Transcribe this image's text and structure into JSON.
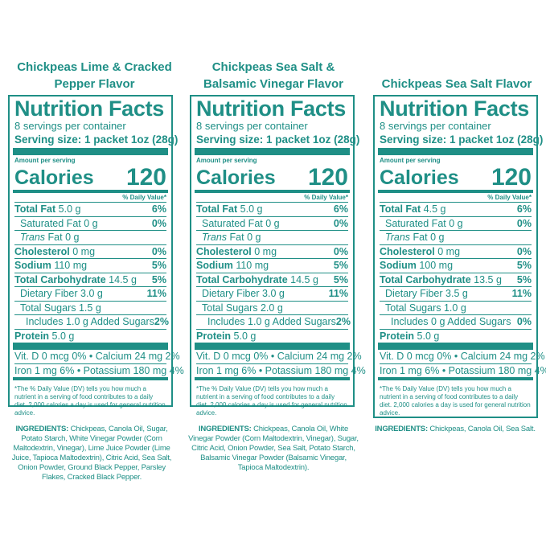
{
  "columns": [
    {
      "flavor": "Chickpeas Lime & Cracked Pepper Flavor",
      "label": {
        "title": "Nutrition Facts",
        "servings": "8 servings per container",
        "serving_size_label": "Serving size:",
        "serving_size_value": "1 packet 1oz (28g)",
        "amount_per_serving": "Amount per serving",
        "calories_label": "Calories",
        "calories_value": "120",
        "dv_header": "% Daily Value*",
        "total_fat": {
          "label": "Total Fat",
          "amount": "5.0 g",
          "dv": "6%"
        },
        "saturated_fat": {
          "label": "Saturated Fat",
          "amount": "0 g",
          "dv": "0%"
        },
        "trans_fat": {
          "label_italic": "Trans",
          "label": "Fat",
          "amount": "0 g"
        },
        "cholesterol": {
          "label": "Cholesterol",
          "amount": "0 mg",
          "dv": "0%"
        },
        "sodium": {
          "label": "Sodium",
          "amount": "110 mg",
          "dv": "5%"
        },
        "total_carb": {
          "label": "Total Carbohydrate",
          "amount": "14.5 g",
          "dv": "5%"
        },
        "fiber": {
          "label": "Dietary Fiber",
          "amount": "3.0 g",
          "dv": "11%"
        },
        "sugars": {
          "label": "Total Sugars",
          "amount": "1.5 g"
        },
        "added_sugars": {
          "label": "Includes",
          "amount": "1.0 g",
          "suffix": "Added Sugars",
          "dv": "2%"
        },
        "protein": {
          "label": "Protein",
          "amount": "5.0 g"
        },
        "vitamins_line1": "Vit. D 0 mcg 0% • Calcium 24 mg 2%",
        "vitamins_line2": "Iron 1 mg 6% • Potassium 180 mg 4%",
        "footnote": "*The % Daily Value (DV) tells you how much a nutrient in a serving of food contributes to a daily diet. 2,000 calories a day is used for general nutrition advice."
      },
      "ingredients_label": "INGREDIENTS:",
      "ingredients": "Chickpeas, Canola Oil, Sugar, Potato Starch, White Vinegar Powder (Corn Maltodextrin, Vinegar), Lime Juice Powder (Lime Juice, Tapioca Maltodextrin), Citric Acid, Sea Salt, Onion Powder, Ground Black Pepper, Parsley Flakes, Cracked Black Pepper."
    },
    {
      "flavor": "Chickpeas Sea Salt & Balsamic Vinegar Flavor",
      "label": {
        "title": "Nutrition Facts",
        "servings": "8 servings per container",
        "serving_size_label": "Serving size:",
        "serving_size_value": "1 packet 1oz (28g)",
        "amount_per_serving": "Amount per serving",
        "calories_label": "Calories",
        "calories_value": "120",
        "dv_header": "% Daily Value*",
        "total_fat": {
          "label": "Total Fat",
          "amount": "5.0 g",
          "dv": "6%"
        },
        "saturated_fat": {
          "label": "Saturated Fat",
          "amount": "0 g",
          "dv": "0%"
        },
        "trans_fat": {
          "label_italic": "Trans",
          "label": "Fat",
          "amount": "0 g"
        },
        "cholesterol": {
          "label": "Cholesterol",
          "amount": "0 mg",
          "dv": "0%"
        },
        "sodium": {
          "label": "Sodium",
          "amount": "110 mg",
          "dv": "5%"
        },
        "total_carb": {
          "label": "Total Carbohydrate",
          "amount": "14.5 g",
          "dv": "5%"
        },
        "fiber": {
          "label": "Dietary Fiber",
          "amount": "3.0 g",
          "dv": "11%"
        },
        "sugars": {
          "label": "Total Sugars",
          "amount": "2.0 g"
        },
        "added_sugars": {
          "label": "Includes",
          "amount": "1.0 g",
          "suffix": "Added Sugars",
          "dv": "2%"
        },
        "protein": {
          "label": "Protein",
          "amount": "5.0 g"
        },
        "vitamins_line1": "Vit. D 0 mcg 0% • Calcium 24 mg 2%",
        "vitamins_line2": "Iron 1 mg 6% • Potassium 180 mg 4%",
        "footnote": "*The % Daily Value (DV) tells you how much a nutrient in a serving of food contributes to a daily diet. 2,000 calories a day is used for general nutrition advice."
      },
      "ingredients_label": "INGREDIENTS:",
      "ingredients": "Chickpeas, Canola Oil, White Vinegar Powder (Corn Maltodextrin, Vinegar), Sugar, Citric Acid, Onion Powder, Sea Salt, Potato Starch, Balsamic Vinegar Powder (Balsamic Vinegar, Tapioca Maltodextrin)."
    },
    {
      "flavor": "Chickpeas Sea Salt Flavor",
      "label": {
        "title": "Nutrition Facts",
        "servings": "8 servings per container",
        "serving_size_label": "Serving size:",
        "serving_size_value": "1 packet 1oz (28g)",
        "amount_per_serving": "Amount per serving",
        "calories_label": "Calories",
        "calories_value": "120",
        "dv_header": "% Daily Value*",
        "total_fat": {
          "label": "Total Fat",
          "amount": "4.5 g",
          "dv": "6%"
        },
        "saturated_fat": {
          "label": "Saturated Fat",
          "amount": "0 g",
          "dv": "0%"
        },
        "trans_fat": {
          "label_italic": "Trans",
          "label": "Fat",
          "amount": "0 g"
        },
        "cholesterol": {
          "label": "Cholesterol",
          "amount": "0 mg",
          "dv": "0%"
        },
        "sodium": {
          "label": "Sodium",
          "amount": "100 mg",
          "dv": "5%"
        },
        "total_carb": {
          "label": "Total Carbohydrate",
          "amount": "13.5 g",
          "dv": "5%"
        },
        "fiber": {
          "label": "Dietary Fiber",
          "amount": "3.5 g",
          "dv": "11%"
        },
        "sugars": {
          "label": "Total Sugars",
          "amount": "1.0 g"
        },
        "added_sugars": {
          "label": "Includes",
          "amount": "0 g",
          "suffix": "Added Sugars",
          "dv": "0%"
        },
        "protein": {
          "label": "Protein",
          "amount": "5.0 g"
        },
        "vitamins_line1": "Vit. D 0 mcg 0% • Calcium 24 mg 2%",
        "vitamins_line2": "Iron 1 mg 6% • Potassium 180 mg 4%",
        "footnote": "*The % Daily Value (DV) tells you how much a nutrient in a serving of food contributes to a daily diet. 2,000 calories a day is used for general nutrition advice."
      },
      "ingredients_label": "INGREDIENTS:",
      "ingredients": "Chickpeas, Canola Oil, Sea Salt."
    }
  ],
  "colors": {
    "brand_teal": "#1f8f86",
    "background": "#ffffff"
  }
}
